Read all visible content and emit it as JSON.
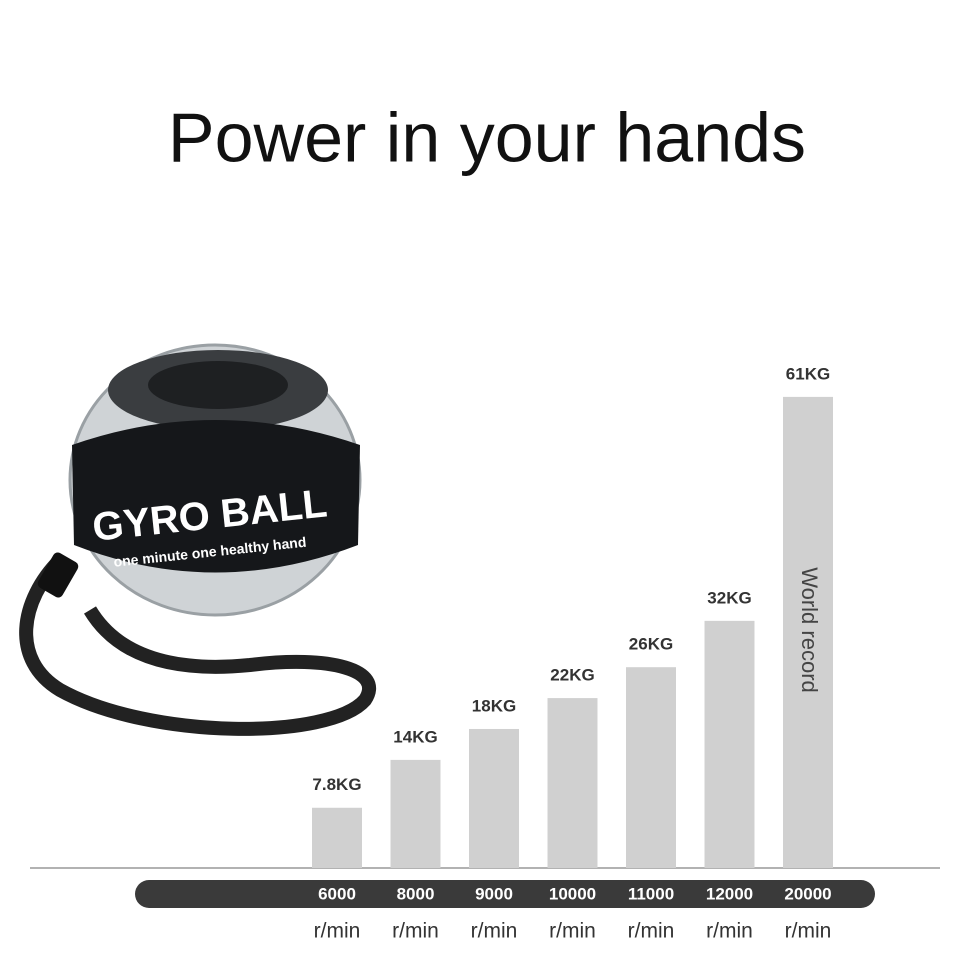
{
  "chart_data": {
    "type": "bar",
    "title": "Power in your hands",
    "categories": [
      "6000",
      "8000",
      "9000",
      "10000",
      "11000",
      "12000",
      "20000"
    ],
    "x_unit": "r/min",
    "values": [
      7.8,
      14,
      18,
      22,
      26,
      32,
      61
    ],
    "value_labels": [
      "7.8KG",
      "14KG",
      "18KG",
      "22KG",
      "26KG",
      "32KG",
      "61KG"
    ],
    "color": "#d0d0d0",
    "ylim": [
      0,
      65
    ],
    "annotation": "World record"
  },
  "product": {
    "name": "GYRO BALL",
    "slogan": "one minute  one healthy hand"
  }
}
